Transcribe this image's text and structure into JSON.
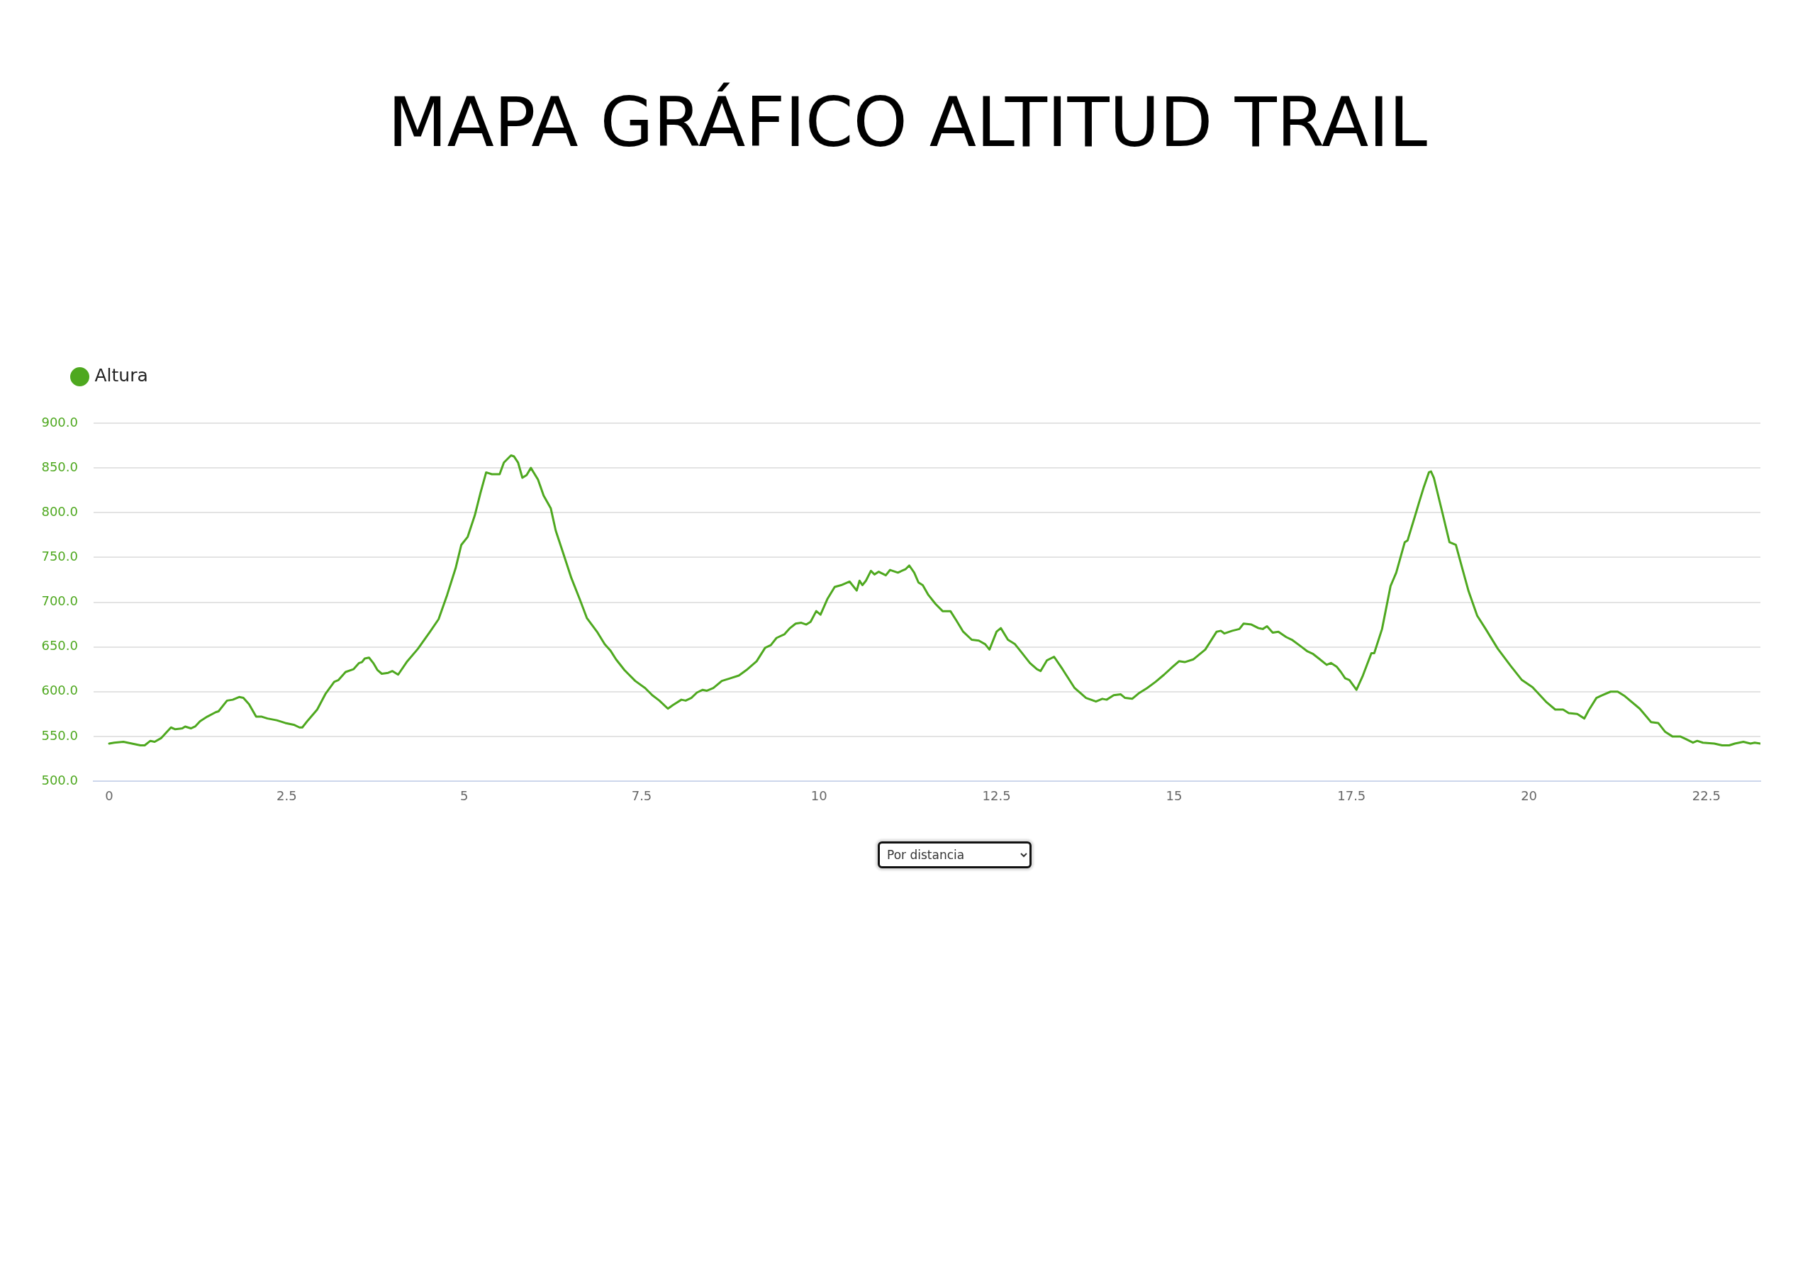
{
  "chart_data": {
    "type": "line",
    "title": "MAPA GRÁFICO ALTITUD TRAIL",
    "annotations": [
      "Por distancia"
    ],
    "x": [
      0,
      0.07,
      0.2,
      0.32,
      0.44,
      0.5,
      0.58,
      0.64,
      0.73,
      0.87,
      0.93,
      1.03,
      1.07,
      1.15,
      1.21,
      1.28,
      1.38,
      1.5,
      1.54,
      1.66,
      1.74,
      1.83,
      1.89,
      1.97,
      2.07,
      2.15,
      2.23,
      2.36,
      2.48,
      2.6,
      2.68,
      2.72,
      2.8,
      2.93,
      3.05,
      3.17,
      3.23,
      3.33,
      3.44,
      3.52,
      3.56,
      3.6,
      3.66,
      3.72,
      3.78,
      3.84,
      3.93,
      3.99,
      4.07,
      4.19,
      4.35,
      4.52,
      4.64,
      4.76,
      4.88,
      4.96,
      5.05,
      5.15,
      5.23,
      5.31,
      5.39,
      5.5,
      5.56,
      5.66,
      5.7,
      5.76,
      5.82,
      5.88,
      5.94,
      6.04,
      6.12,
      6.22,
      6.29,
      6.39,
      6.51,
      6.63,
      6.73,
      6.88,
      6.98,
      7.06,
      7.14,
      7.26,
      7.41,
      7.55,
      7.65,
      7.75,
      7.87,
      7.94,
      8.06,
      8.12,
      8.2,
      8.28,
      8.36,
      8.42,
      8.51,
      8.63,
      8.75,
      8.87,
      8.99,
      9.12,
      9.24,
      9.32,
      9.4,
      9.51,
      9.59,
      9.67,
      9.75,
      9.82,
      9.88,
      9.96,
      10.02,
      10.12,
      10.22,
      10.31,
      10.43,
      10.53,
      10.57,
      10.61,
      10.66,
      10.73,
      10.78,
      10.84,
      10.94,
      11,
      11.11,
      11.22,
      11.27,
      11.34,
      11.4,
      11.46,
      11.54,
      11.64,
      11.74,
      11.85,
      11.93,
      12.03,
      12.15,
      12.25,
      12.34,
      12.4,
      12.5,
      12.56,
      12.66,
      12.76,
      12.84,
      12.97,
      13.07,
      13.12,
      13.21,
      13.31,
      13.43,
      13.6,
      13.76,
      13.9,
      13.99,
      14.05,
      14.15,
      14.25,
      14.31,
      14.41,
      14.5,
      14.62,
      14.74,
      14.86,
      14.97,
      15.07,
      15.15,
      15.27,
      15.44,
      15.6,
      15.66,
      15.71,
      15.82,
      15.92,
      15.98,
      16.09,
      16.19,
      16.25,
      16.31,
      16.39,
      16.47,
      16.58,
      16.66,
      16.78,
      16.88,
      16.96,
      17.04,
      17.15,
      17.21,
      17.29,
      17.35,
      17.41,
      17.47,
      17.57,
      17.66,
      17.78,
      17.82,
      17.93,
      18.05,
      18.13,
      18.25,
      18.29,
      18.42,
      18.45,
      18.52,
      18.59,
      18.62,
      18.66,
      18.78,
      18.88,
      18.97,
      19.07,
      19.15,
      19.27,
      19.39,
      19.56,
      19.74,
      19.9,
      20.05,
      20.25,
      20.37,
      20.48,
      20.56,
      20.68,
      20.78,
      20.84,
      20.95,
      21.03,
      21.15,
      21.25,
      21.35,
      21.56,
      21.72,
      21.82,
      21.92,
      22.02,
      22.13,
      22.21,
      22.31,
      22.37,
      22.45,
      22.61,
      22.72,
      22.82,
      22.9,
      23.02,
      23.12,
      23.18,
      23.26
    ],
    "series": [
      {
        "name": "Altura",
        "color": "#4ea81f",
        "values": [
          542,
          543,
          544,
          542,
          540,
          540,
          545,
          544,
          548,
          560,
          558,
          559,
          561,
          559,
          561,
          567,
          572,
          577,
          578,
          590,
          591,
          594,
          593,
          586,
          572,
          572,
          570,
          568,
          565,
          563,
          560,
          560,
          568,
          580,
          598,
          611,
          613,
          622,
          625,
          632,
          633,
          637,
          638,
          632,
          624,
          620,
          621,
          623,
          619,
          633,
          648,
          667,
          681,
          708,
          738,
          764,
          773,
          797,
          822,
          845,
          843,
          843,
          856,
          864,
          863,
          856,
          839,
          842,
          850,
          837,
          819,
          805,
          780,
          756,
          727,
          703,
          682,
          666,
          653,
          646,
          636,
          624,
          612,
          604,
          596,
          590,
          581,
          585,
          591,
          590,
          593,
          599,
          602,
          601,
          604,
          612,
          615,
          618,
          625,
          634,
          649,
          652,
          660,
          664,
          671,
          676,
          677,
          675,
          678,
          690,
          686,
          704,
          717,
          719,
          723,
          713,
          724,
          719,
          724,
          735,
          731,
          734,
          730,
          736,
          733,
          737,
          741,
          733,
          722,
          719,
          708,
          698,
          690,
          690,
          680,
          667,
          658,
          657,
          653,
          647,
          667,
          671,
          658,
          653,
          645,
          632,
          625,
          623,
          635,
          639,
          625,
          604,
          593,
          589,
          592,
          591,
          596,
          597,
          593,
          592,
          598,
          604,
          611,
          619,
          627,
          634,
          633,
          636,
          647,
          667,
          668,
          665,
          668,
          670,
          676,
          675,
          671,
          670,
          673,
          666,
          667,
          661,
          658,
          651,
          645,
          642,
          637,
          630,
          632,
          628,
          622,
          615,
          613,
          602,
          618,
          643,
          643,
          670,
          718,
          733,
          767,
          769,
          803,
          811,
          829,
          845,
          846,
          839,
          800,
          767,
          764,
          735,
          712,
          685,
          670,
          648,
          629,
          613,
          605,
          588,
          580,
          580,
          576,
          575,
          570,
          579,
          593,
          596,
          600,
          600,
          595,
          581,
          566,
          565,
          555,
          550,
          550,
          547,
          543,
          545,
          543,
          542,
          540,
          540,
          542,
          544,
          542,
          543,
          542
        ]
      }
    ],
    "xlim": [
      -0.22,
      23.26
    ],
    "xticks": [
      0,
      2.5,
      5,
      7.5,
      10,
      12.5,
      15,
      17.5,
      20,
      22.5
    ],
    "ylim": [
      500,
      900
    ],
    "yticks": [
      {
        "value": 500,
        "label": "500.0"
      },
      {
        "value": 550,
        "label": "550.0"
      },
      {
        "value": 600,
        "label": "600.0"
      },
      {
        "value": 650,
        "label": "650.0"
      },
      {
        "value": 700,
        "label": "700.0"
      },
      {
        "value": 750,
        "label": "750.0"
      },
      {
        "value": 800,
        "label": "800.0"
      },
      {
        "value": 850,
        "label": "850.0"
      },
      {
        "value": 900,
        "label": "900.0"
      }
    ],
    "grid": "y",
    "legend": "top left",
    "marker": "none",
    "line_style": "solid"
  }
}
